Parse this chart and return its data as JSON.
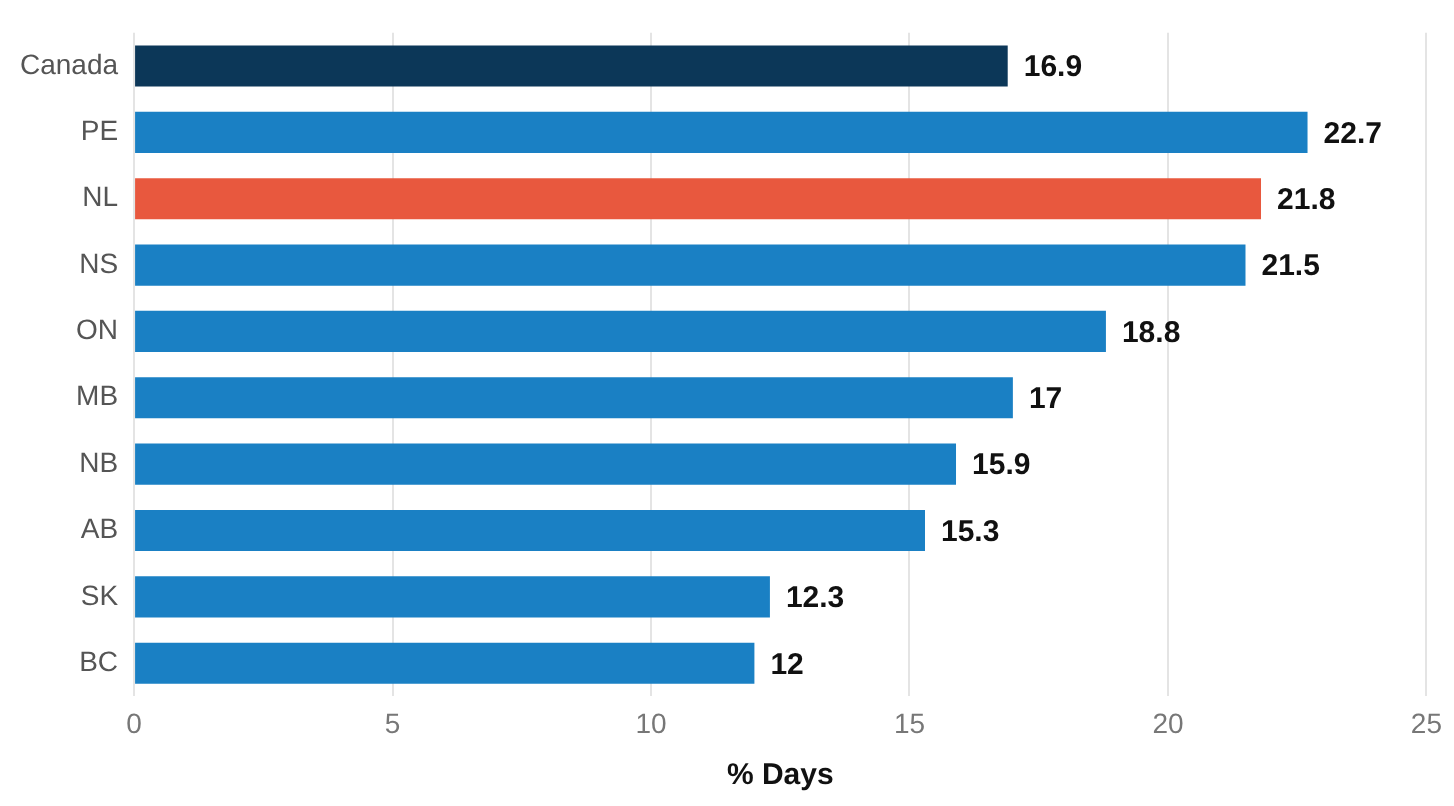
{
  "chart_data": {
    "type": "bar",
    "orientation": "horizontal",
    "categories": [
      "Canada",
      "PE",
      "NL",
      "NS",
      "ON",
      "MB",
      "NB",
      "AB",
      "SK",
      "BC"
    ],
    "values": [
      16.9,
      22.7,
      21.8,
      21.5,
      18.8,
      17,
      15.9,
      15.3,
      12.3,
      12
    ],
    "colors": [
      "#0c3758",
      "#1a80c4",
      "#e8583e",
      "#1a80c4",
      "#1a80c4",
      "#1a80c4",
      "#1a80c4",
      "#1a80c4",
      "#1a80c4",
      "#1a80c4"
    ],
    "xlabel": "% Days",
    "xlim": [
      0,
      25
    ],
    "xticks": [
      0,
      5,
      10,
      15,
      20,
      25
    ],
    "grid": "x",
    "data_labels": true,
    "legend": false
  }
}
